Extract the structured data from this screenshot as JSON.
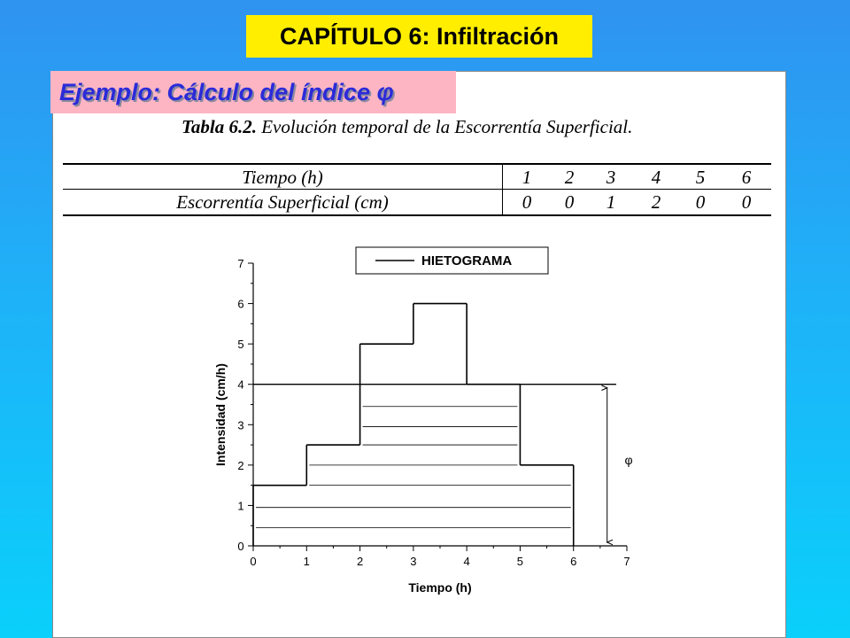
{
  "chapter_title": "CAPÍTULO 6: Infiltración",
  "example_title": "Ejemplo: Cálculo del índice φ",
  "table": {
    "caption_bold": "Tabla 6.2.",
    "caption_rest": "Evolución temporal  de la Escorrentía Superficial.",
    "row1_label": "Tiempo (h)",
    "row1_values": [
      "1",
      "2",
      "3",
      "4",
      "5",
      "6"
    ],
    "row2_label": "Escorrentía Superficial (cm)",
    "row2_values": [
      "0",
      "0",
      "1",
      "2",
      "0",
      "0"
    ]
  },
  "chart_data": {
    "type": "bar",
    "xlabel": "Tiempo (h)",
    "ylabel": "Intensidad (cm/h)",
    "xlim": [
      0,
      7
    ],
    "ylim": [
      0,
      7
    ],
    "xticks": [
      "0",
      "1",
      "2",
      "3",
      "4",
      "5",
      "6",
      "7"
    ],
    "yticks": [
      "0",
      "1",
      "2",
      "3",
      "4",
      "5",
      "6",
      "7"
    ],
    "legend": "HIETOGRAMA",
    "legend_position": "top-center",
    "series": [
      {
        "name": "HIETOGRAMA",
        "x_start": [
          0,
          1,
          2,
          3,
          4,
          5
        ],
        "x_end": [
          1,
          2,
          3,
          4,
          5,
          6
        ],
        "values": [
          1.5,
          2.5,
          5,
          6,
          4,
          2
        ]
      }
    ],
    "phi_value": 4,
    "phi_label": "φ",
    "grid": false
  }
}
